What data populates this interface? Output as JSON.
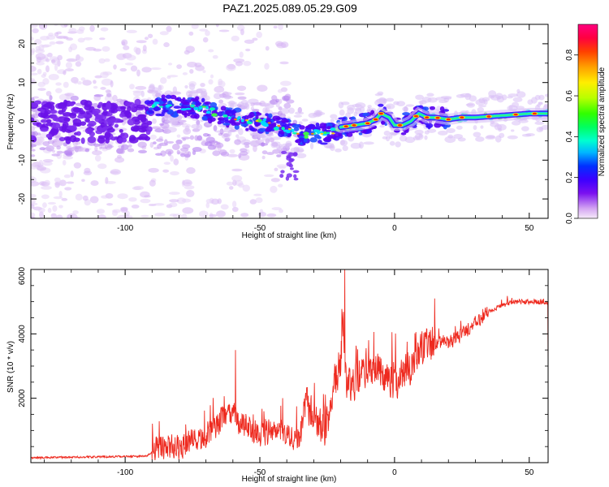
{
  "title": "PAZ1.2025.089.05.29.G09",
  "chart_data": [
    {
      "type": "heatmap",
      "xlabel": "Height of straight line (km)",
      "ylabel": "Frequency (Hz)",
      "xlim": [
        -135,
        57
      ],
      "ylim": [
        -25,
        25
      ],
      "x_ticks": [
        -100,
        -50,
        0,
        50
      ],
      "y_ticks": [
        -20,
        -10,
        0,
        10,
        20
      ],
      "grid": false,
      "colorbar": {
        "label": "Normalized spectral amplitude",
        "range": [
          0,
          0.95
        ],
        "ticks": [
          0.0,
          0.2,
          0.4,
          0.6,
          0.8
        ],
        "colors": [
          "#f6eaf9",
          "#d4a6f2",
          "#7a10f0",
          "#3c00ff",
          "#0030ff",
          "#00b7ff",
          "#00ffd0",
          "#00ff60",
          "#30ff00",
          "#b8ff00",
          "#ffee00",
          "#ffa000",
          "#ff4000",
          "#ff0040",
          "#ff0080"
        ]
      },
      "ridge": [
        {
          "x": -92,
          "y": 4
        },
        {
          "x": -85,
          "y": 4
        },
        {
          "x": -78,
          "y": 3.5
        },
        {
          "x": -72,
          "y": 3.5
        },
        {
          "x": -66,
          "y": 2
        },
        {
          "x": -60,
          "y": 0.5
        },
        {
          "x": -50,
          "y": 0
        },
        {
          "x": -45,
          "y": -1
        },
        {
          "x": -40,
          "y": -2
        },
        {
          "x": -35,
          "y": -3.5
        },
        {
          "x": -30,
          "y": -3
        },
        {
          "x": -25,
          "y": -3.5
        },
        {
          "x": -20,
          "y": -1.5
        },
        {
          "x": -15,
          "y": -1
        },
        {
          "x": -10,
          "y": -0.5
        },
        {
          "x": -7,
          "y": 0.5
        },
        {
          "x": -5,
          "y": 2
        },
        {
          "x": -2,
          "y": 1
        },
        {
          "x": 0,
          "y": -1
        },
        {
          "x": 3,
          "y": -1
        },
        {
          "x": 6,
          "y": 0
        },
        {
          "x": 9,
          "y": 2
        },
        {
          "x": 12,
          "y": 1
        },
        {
          "x": 15,
          "y": 1
        },
        {
          "x": 20,
          "y": 0.5
        },
        {
          "x": 25,
          "y": 1
        },
        {
          "x": 30,
          "y": 1
        },
        {
          "x": 40,
          "y": 1.5
        },
        {
          "x": 50,
          "y": 2
        },
        {
          "x": 57,
          "y": 2
        }
      ]
    },
    {
      "type": "line",
      "xlabel": "Height of straight line (km)",
      "ylabel": "SNR (10 * v/v)",
      "xlim": [
        -135,
        57
      ],
      "ylim": [
        0,
        6000
      ],
      "x_ticks": [
        -100,
        -50,
        0,
        50
      ],
      "y_ticks": [
        2000,
        4000,
        6000
      ],
      "grid": false,
      "series": [
        {
          "color": "#ff2a1a",
          "x": [
            -135,
            -110,
            -92,
            -88,
            -80,
            -70,
            -65,
            -60,
            -58,
            -55,
            -50,
            -45,
            -40,
            -35,
            -33,
            -30,
            -27,
            -25,
            -22,
            -20,
            -19,
            -18,
            -15,
            -10,
            -5,
            0,
            5,
            10,
            15,
            20,
            25,
            30,
            35,
            40,
            45,
            50,
            55,
            57
          ],
          "y": [
            150,
            180,
            200,
            450,
            500,
            800,
            1300,
            1500,
            1300,
            1100,
            900,
            950,
            800,
            700,
            1900,
            1400,
            1000,
            1200,
            2600,
            3000,
            4500,
            2400,
            2500,
            3000,
            2800,
            2500,
            2900,
            3500,
            3700,
            3700,
            4000,
            4300,
            4700,
            4900,
            5000,
            5000,
            5000,
            4950
          ]
        }
      ],
      "peaks": [
        {
          "x": -59,
          "y": 3500
        },
        {
          "x": -18.5,
          "y": 6000
        }
      ]
    }
  ]
}
